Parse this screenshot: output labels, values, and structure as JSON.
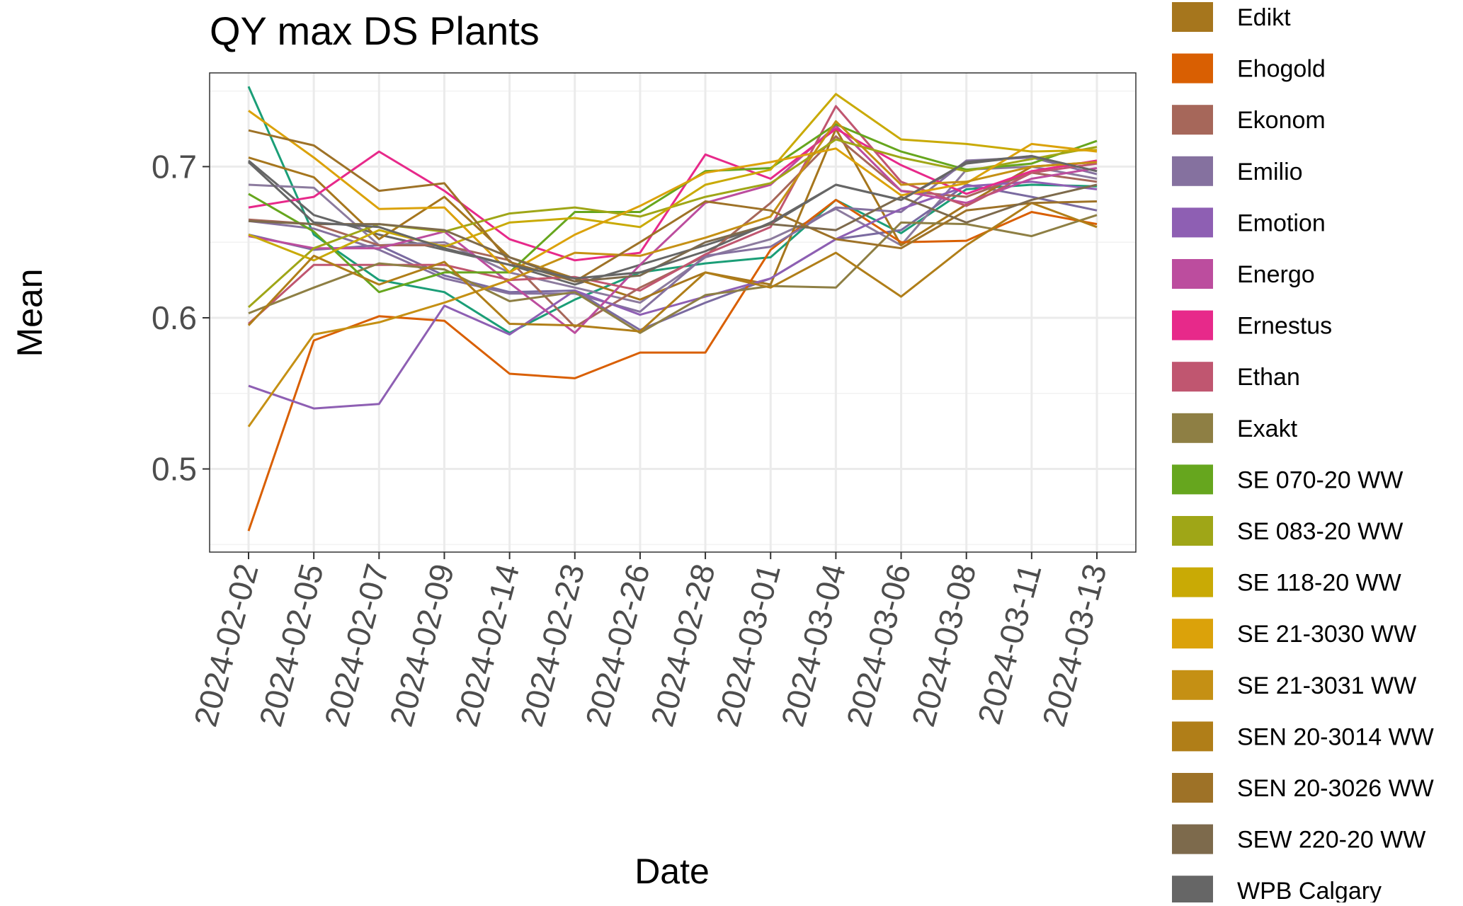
{
  "chart_data": {
    "type": "line",
    "title": "QY max DS Plants",
    "xlabel": "Date",
    "ylabel": "Mean",
    "x": [
      "2024-02-02",
      "2024-02-05",
      "2024-02-07",
      "2024-02-09",
      "2024-02-14",
      "2024-02-23",
      "2024-02-26",
      "2024-02-28",
      "2024-03-01",
      "2024-03-04",
      "2024-03-06",
      "2024-03-08",
      "2024-03-11",
      "2024-03-13"
    ],
    "ylim": [
      0.445,
      0.762
    ],
    "yticks": [
      0.5,
      0.6,
      0.7
    ],
    "yticklabels": [
      "0.5",
      "0.6",
      "0.7"
    ],
    "grid": true,
    "legend_position": "right",
    "series": [
      {
        "name": "",
        "color": "#1B9E77",
        "values": [
          0.753,
          0.655,
          0.625,
          0.617,
          0.59,
          0.612,
          0.63,
          0.636,
          0.64,
          0.678,
          0.656,
          0.685,
          0.688,
          0.687
        ]
      },
      {
        "name": "",
        "color": "#666666",
        "values": [
          0.704,
          0.668,
          0.655,
          0.645,
          0.635,
          0.622,
          0.635,
          0.648,
          0.662,
          0.688,
          0.678,
          0.702,
          0.707,
          0.697
        ]
      },
      {
        "name": "",
        "color": "#8C7B9E",
        "values": [
          0.688,
          0.686,
          0.648,
          0.65,
          0.63,
          0.62,
          0.61,
          0.64,
          0.652,
          0.672,
          0.648,
          0.698,
          0.7,
          0.692
        ]
      },
      {
        "name": "",
        "color": "#7A6AA0",
        "values": [
          0.655,
          0.645,
          0.648,
          0.628,
          0.617,
          0.618,
          0.592,
          0.61,
          0.626,
          0.652,
          0.658,
          0.688,
          0.68,
          0.671
        ]
      },
      {
        "name": "Edikt",
        "color": "#A6761D",
        "values": [
          0.706,
          0.693,
          0.652,
          0.68,
          0.64,
          0.626,
          0.612,
          0.63,
          0.622,
          0.725,
          0.648,
          0.675,
          0.7,
          0.703
        ]
      },
      {
        "name": "Ehogold",
        "color": "#D95F02",
        "values": [
          0.459,
          0.585,
          0.601,
          0.598,
          0.563,
          0.56,
          0.577,
          0.577,
          0.645,
          0.678,
          0.65,
          0.651,
          0.67,
          0.662
        ]
      },
      {
        "name": "Ekonom",
        "color": "#A6675A",
        "values": [
          0.665,
          0.662,
          0.648,
          0.648,
          0.638,
          0.594,
          0.62,
          0.641,
          0.676,
          0.72,
          0.684,
          0.68,
          0.696,
          0.69
        ]
      },
      {
        "name": "Emilio",
        "color": "#85719F",
        "values": [
          0.664,
          0.659,
          0.645,
          0.626,
          0.616,
          0.616,
          0.604,
          0.641,
          0.647,
          0.673,
          0.67,
          0.704,
          0.706,
          0.695
        ]
      },
      {
        "name": "Emotion",
        "color": "#8E5FB3",
        "values": [
          0.555,
          0.54,
          0.543,
          0.608,
          0.589,
          0.618,
          0.602,
          0.614,
          0.626,
          0.652,
          0.672,
          0.687,
          0.69,
          0.685
        ]
      },
      {
        "name": "Energo",
        "color": "#BC4D9E",
        "values": [
          0.654,
          0.646,
          0.646,
          0.657,
          0.623,
          0.59,
          0.635,
          0.676,
          0.688,
          0.727,
          0.684,
          0.676,
          0.692,
          0.699
        ]
      },
      {
        "name": "Ernestus",
        "color": "#E7298A",
        "values": [
          0.673,
          0.68,
          0.71,
          0.684,
          0.652,
          0.638,
          0.643,
          0.708,
          0.692,
          0.725,
          0.701,
          0.682,
          0.697,
          0.704
        ]
      },
      {
        "name": "Ethan",
        "color": "#C05670",
        "values": [
          0.596,
          0.635,
          0.635,
          0.635,
          0.625,
          0.627,
          0.618,
          0.642,
          0.66,
          0.74,
          0.69,
          0.674,
          0.696,
          0.702
        ]
      },
      {
        "name": "Exakt",
        "color": "#8E7F44",
        "values": [
          0.603,
          0.62,
          0.636,
          0.632,
          0.611,
          0.617,
          0.59,
          0.615,
          0.621,
          0.62,
          0.663,
          0.662,
          0.654,
          0.668
        ]
      },
      {
        "name": "SE 070-20 WW",
        "color": "#66A61E",
        "values": [
          0.682,
          0.657,
          0.617,
          0.63,
          0.63,
          0.67,
          0.67,
          0.697,
          0.699,
          0.728,
          0.71,
          0.698,
          0.702,
          0.717
        ]
      },
      {
        "name": "SE 083-20 WW",
        "color": "#9FA617",
        "values": [
          0.607,
          0.646,
          0.662,
          0.657,
          0.669,
          0.673,
          0.667,
          0.68,
          0.689,
          0.718,
          0.706,
          0.697,
          0.705,
          0.713
        ]
      },
      {
        "name": "SE 118-20 WW",
        "color": "#C9AA05",
        "values": [
          0.655,
          0.638,
          0.658,
          0.647,
          0.663,
          0.666,
          0.66,
          0.688,
          0.698,
          0.748,
          0.718,
          0.715,
          0.71,
          0.711
        ]
      },
      {
        "name": "SE 21-3030 WW",
        "color": "#DBA20A",
        "values": [
          0.737,
          0.706,
          0.672,
          0.673,
          0.63,
          0.655,
          0.674,
          0.696,
          0.703,
          0.712,
          0.681,
          0.689,
          0.715,
          0.71
        ]
      },
      {
        "name": "SE 21-3031 WW",
        "color": "#C59014",
        "values": [
          0.528,
          0.589,
          0.597,
          0.61,
          0.625,
          0.643,
          0.641,
          0.653,
          0.667,
          0.73,
          0.688,
          0.69,
          0.7,
          0.703
        ]
      },
      {
        "name": "SEN 20-3014 WW",
        "color": "#B07E18",
        "values": [
          0.595,
          0.641,
          0.622,
          0.637,
          0.596,
          0.595,
          0.591,
          0.63,
          0.62,
          0.643,
          0.614,
          0.648,
          0.676,
          0.66
        ]
      },
      {
        "name": "SEN 20-3026 WW",
        "color": "#9E7227",
        "values": [
          0.724,
          0.714,
          0.684,
          0.689,
          0.637,
          0.624,
          0.65,
          0.677,
          0.671,
          0.652,
          0.646,
          0.671,
          0.676,
          0.677
        ]
      },
      {
        "name": "SEW 220-20 WW",
        "color": "#7D6A4C",
        "values": [
          0.664,
          0.662,
          0.662,
          0.658,
          0.64,
          0.624,
          0.628,
          0.65,
          0.662,
          0.658,
          0.68,
          0.663,
          0.678,
          0.688
        ]
      },
      {
        "name": "WPB Calgary",
        "color": "#666666",
        "values": [
          0.703,
          0.663,
          0.66,
          0.646,
          0.635,
          0.626,
          0.63,
          0.644,
          0.663,
          0.688,
          0.678,
          0.703,
          0.707,
          0.697
        ]
      }
    ]
  }
}
